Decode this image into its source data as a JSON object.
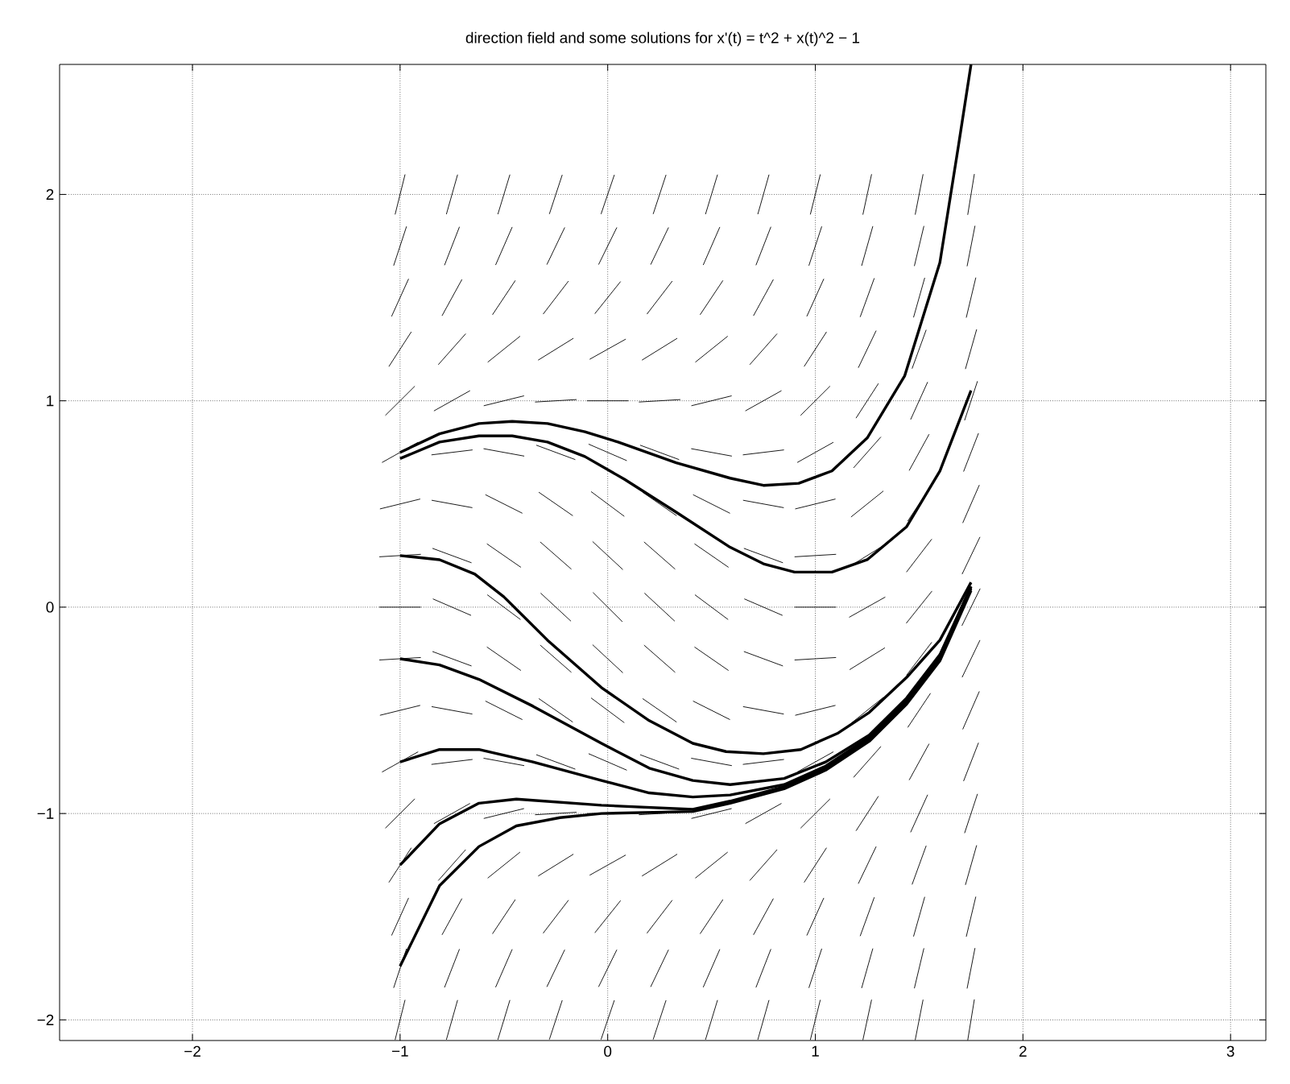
{
  "chart_data": {
    "type": "line",
    "title": "direction field and some solutions for  x'(t) = t^2 + x(t)^2 − 1",
    "xlim": [
      -2.64,
      3.17
    ],
    "ylim": [
      -2.1,
      2.63
    ],
    "xticks": [
      {
        "value": -2,
        "label": "−2"
      },
      {
        "value": -1,
        "label": "−1"
      },
      0,
      1,
      2,
      3
    ],
    "yticks": [
      {
        "value": -2,
        "label": "−2"
      },
      {
        "value": -1,
        "label": "−1"
      },
      0,
      1,
      2
    ],
    "grid": true,
    "series": [
      {
        "color": "#000000",
        "x": [
          -1.024,
          -0.976
        ],
        "values": [
          -2.097,
          -1.903
        ]
      },
      {
        "color": "#000000",
        "x": [
          -1.031,
          -0.969
        ],
        "values": [
          -1.845,
          -1.655
        ]
      },
      {
        "color": "#000000",
        "x": [
          -1.041,
          -0.959
        ],
        "values": [
          -1.591,
          -1.409
        ]
      },
      {
        "color": "#000000",
        "x": [
          -1.054,
          -0.946
        ],
        "values": [
          -1.334,
          -1.166
        ]
      },
      {
        "color": "#000000",
        "x": [
          -1.071,
          -0.929
        ],
        "values": [
          -1.071,
          -0.929
        ]
      },
      {
        "color": "#000000",
        "x": [
          -1.087,
          -0.913
        ],
        "values": [
          -0.799,
          -0.701
        ]
      },
      {
        "color": "#000000",
        "x": [
          -1.097,
          -0.903
        ],
        "values": [
          -0.524,
          -0.476
        ]
      },
      {
        "color": "#000000",
        "x": [
          -1.1,
          -0.9
        ],
        "values": [
          -0.256,
          -0.244
        ]
      },
      {
        "color": "#000000",
        "x": [
          -1.1,
          -0.9
        ],
        "values": [
          0,
          0
        ]
      },
      {
        "color": "#000000",
        "x": [
          -1.1,
          -0.9
        ],
        "values": [
          0.244,
          0.256
        ]
      },
      {
        "color": "#000000",
        "x": [
          -1.097,
          -0.903
        ],
        "values": [
          0.476,
          0.524
        ]
      },
      {
        "color": "#000000",
        "x": [
          -1.087,
          -0.913
        ],
        "values": [
          0.701,
          0.799
        ]
      },
      {
        "color": "#000000",
        "x": [
          -1.071,
          -0.929
        ],
        "values": [
          0.929,
          1.071
        ]
      },
      {
        "color": "#000000",
        "x": [
          -1.054,
          -0.946
        ],
        "values": [
          1.166,
          1.334
        ]
      },
      {
        "color": "#000000",
        "x": [
          -1.041,
          -0.959
        ],
        "values": [
          1.409,
          1.591
        ]
      },
      {
        "color": "#000000",
        "x": [
          -1.031,
          -0.969
        ],
        "values": [
          1.655,
          1.845
        ]
      },
      {
        "color": "#000000",
        "x": [
          -1.024,
          -0.976
        ],
        "values": [
          1.903,
          2.097
        ]
      },
      {
        "color": "#000000",
        "x": [
          -0.777,
          -0.723
        ],
        "values": [
          -2.096,
          -1.904
        ]
      },
      {
        "color": "#000000",
        "x": [
          -0.786,
          -0.714
        ],
        "values": [
          -1.843,
          -1.657
        ]
      },
      {
        "color": "#000000",
        "x": [
          -0.798,
          -0.702
        ],
        "values": [
          -1.588,
          -1.412
        ]
      },
      {
        "color": "#000000",
        "x": [
          -0.816,
          -0.684
        ],
        "values": [
          -1.325,
          -1.175
        ]
      },
      {
        "color": "#000000",
        "x": [
          -0.837,
          -0.663
        ],
        "values": [
          -1.049,
          -0.951
        ]
      },
      {
        "color": "#000000",
        "x": [
          -0.849,
          -0.651
        ],
        "values": [
          -0.762,
          -0.738
        ]
      },
      {
        "color": "#000000",
        "x": [
          -0.848,
          -0.652
        ],
        "values": [
          -0.482,
          -0.518
        ]
      },
      {
        "color": "#000000",
        "x": [
          -0.844,
          -0.656
        ],
        "values": [
          -0.215,
          -0.285
        ]
      },
      {
        "color": "#000000",
        "x": [
          -0.842,
          -0.658
        ],
        "values": [
          0.04,
          -0.04
        ]
      },
      {
        "color": "#000000",
        "x": [
          -0.844,
          -0.656
        ],
        "values": [
          0.285,
          0.215
        ]
      },
      {
        "color": "#000000",
        "x": [
          -0.848,
          -0.652
        ],
        "values": [
          0.518,
          0.482
        ]
      },
      {
        "color": "#000000",
        "x": [
          -0.849,
          -0.651
        ],
        "values": [
          0.738,
          0.762
        ]
      },
      {
        "color": "#000000",
        "x": [
          -0.837,
          -0.663
        ],
        "values": [
          0.951,
          1.049
        ]
      },
      {
        "color": "#000000",
        "x": [
          -0.816,
          -0.684
        ],
        "values": [
          1.175,
          1.325
        ]
      },
      {
        "color": "#000000",
        "x": [
          -0.798,
          -0.702
        ],
        "values": [
          1.412,
          1.588
        ]
      },
      {
        "color": "#000000",
        "x": [
          -0.786,
          -0.714
        ],
        "values": [
          1.657,
          1.843
        ]
      },
      {
        "color": "#000000",
        "x": [
          -0.777,
          -0.723
        ],
        "values": [
          1.904,
          2.096
        ]
      },
      {
        "color": "#000000",
        "x": [
          -0.529,
          -0.471
        ],
        "values": [
          -2.096,
          -1.904
        ]
      },
      {
        "color": "#000000",
        "x": [
          -0.54,
          -0.46
        ],
        "values": [
          -1.842,
          -1.658
        ]
      },
      {
        "color": "#000000",
        "x": [
          -0.555,
          -0.445
        ],
        "values": [
          -1.583,
          -1.417
        ]
      },
      {
        "color": "#000000",
        "x": [
          -0.578,
          -0.422
        ],
        "values": [
          -1.313,
          -1.187
        ]
      },
      {
        "color": "#000000",
        "x": [
          -0.597,
          -0.403
        ],
        "values": [
          -1.024,
          -0.976
        ]
      },
      {
        "color": "#000000",
        "x": [
          -0.598,
          -0.402
        ],
        "values": [
          -0.732,
          -0.768
        ]
      },
      {
        "color": "#000000",
        "x": [
          -0.589,
          -0.411
        ],
        "values": [
          -0.455,
          -0.545
        ]
      },
      {
        "color": "#000000",
        "x": [
          -0.582,
          -0.418
        ],
        "values": [
          -0.193,
          -0.307
        ]
      },
      {
        "color": "#000000",
        "x": [
          -0.58,
          -0.42
        ],
        "values": [
          0.06,
          -0.06
        ]
      },
      {
        "color": "#000000",
        "x": [
          -0.582,
          -0.418
        ],
        "values": [
          0.307,
          0.193
        ]
      },
      {
        "color": "#000000",
        "x": [
          -0.589,
          -0.411
        ],
        "values": [
          0.545,
          0.455
        ]
      },
      {
        "color": "#000000",
        "x": [
          -0.598,
          -0.402
        ],
        "values": [
          0.768,
          0.732
        ]
      },
      {
        "color": "#000000",
        "x": [
          -0.597,
          -0.403
        ],
        "values": [
          0.976,
          1.024
        ]
      },
      {
        "color": "#000000",
        "x": [
          -0.578,
          -0.422
        ],
        "values": [
          1.187,
          1.313
        ]
      },
      {
        "color": "#000000",
        "x": [
          -0.555,
          -0.445
        ],
        "values": [
          1.417,
          1.583
        ]
      },
      {
        "color": "#000000",
        "x": [
          -0.54,
          -0.46
        ],
        "values": [
          1.658,
          1.842
        ]
      },
      {
        "color": "#000000",
        "x": [
          -0.529,
          -0.471
        ],
        "values": [
          1.904,
          2.096
        ]
      },
      {
        "color": "#000000",
        "x": [
          -0.281,
          -0.219
        ],
        "values": [
          -2.095,
          -1.905
        ]
      },
      {
        "color": "#000000",
        "x": [
          -0.293,
          -0.207
        ],
        "values": [
          -1.84,
          -1.66
        ]
      },
      {
        "color": "#000000",
        "x": [
          -0.311,
          -0.189
        ],
        "values": [
          -1.58,
          -1.42
        ]
      },
      {
        "color": "#000000",
        "x": [
          -0.335,
          -0.165
        ],
        "values": [
          -1.303,
          -1.197
        ]
      },
      {
        "color": "#000000",
        "x": [
          -0.35,
          -0.15
        ],
        "values": [
          -1.006,
          -0.994
        ]
      },
      {
        "color": "#000000",
        "x": [
          -0.344,
          -0.156
        ],
        "values": [
          -0.715,
          -0.785
        ]
      },
      {
        "color": "#000000",
        "x": [
          -0.332,
          -0.168
        ],
        "values": [
          -0.443,
          -0.557
        ]
      },
      {
        "color": "#000000",
        "x": [
          -0.325,
          -0.175
        ],
        "values": [
          -0.184,
          -0.316
        ]
      },
      {
        "color": "#000000",
        "x": [
          -0.323,
          -0.177
        ],
        "values": [
          0.068,
          -0.068
        ]
      },
      {
        "color": "#000000",
        "x": [
          -0.325,
          -0.175
        ],
        "values": [
          0.316,
          0.184
        ]
      },
      {
        "color": "#000000",
        "x": [
          -0.332,
          -0.168
        ],
        "values": [
          0.557,
          0.443
        ]
      },
      {
        "color": "#000000",
        "x": [
          -0.344,
          -0.156
        ],
        "values": [
          0.785,
          0.715
        ]
      },
      {
        "color": "#000000",
        "x": [
          -0.35,
          -0.15
        ],
        "values": [
          0.994,
          1.006
        ]
      },
      {
        "color": "#000000",
        "x": [
          -0.335,
          -0.165
        ],
        "values": [
          1.197,
          1.303
        ]
      },
      {
        "color": "#000000",
        "x": [
          -0.311,
          -0.189
        ],
        "values": [
          1.42,
          1.58
        ]
      },
      {
        "color": "#000000",
        "x": [
          -0.293,
          -0.207
        ],
        "values": [
          1.66,
          1.84
        ]
      },
      {
        "color": "#000000",
        "x": [
          -0.281,
          -0.219
        ],
        "values": [
          1.905,
          2.095
        ]
      },
      {
        "color": "#000000",
        "x": [
          -0.032,
          0.032
        ],
        "values": [
          -2.095,
          -1.905
        ]
      },
      {
        "color": "#000000",
        "x": [
          -0.044,
          0.044
        ],
        "values": [
          -1.84,
          -1.66
        ]
      },
      {
        "color": "#000000",
        "x": [
          -0.062,
          0.062
        ],
        "values": [
          -1.578,
          -1.422
        ]
      },
      {
        "color": "#000000",
        "x": [
          -0.087,
          0.087
        ],
        "values": [
          -1.299,
          -1.201
        ]
      },
      {
        "color": "#000000",
        "x": [
          -0.1,
          0.1
        ],
        "values": [
          -1,
          -1
        ]
      },
      {
        "color": "#000000",
        "x": [
          -0.092,
          0.092
        ],
        "values": [
          -0.71,
          -0.79
        ]
      },
      {
        "color": "#000000",
        "x": [
          -0.08,
          0.08
        ],
        "values": [
          -0.44,
          -0.56
        ]
      },
      {
        "color": "#000000",
        "x": [
          -0.073,
          0.073
        ],
        "values": [
          -0.182,
          -0.318
        ]
      },
      {
        "color": "#000000",
        "x": [
          -0.071,
          0.071
        ],
        "values": [
          0.071,
          -0.071
        ]
      },
      {
        "color": "#000000",
        "x": [
          -0.073,
          0.073
        ],
        "values": [
          0.318,
          0.182
        ]
      },
      {
        "color": "#000000",
        "x": [
          -0.08,
          0.08
        ],
        "values": [
          0.56,
          0.44
        ]
      },
      {
        "color": "#000000",
        "x": [
          -0.092,
          0.092
        ],
        "values": [
          0.79,
          0.71
        ]
      },
      {
        "color": "#000000",
        "x": [
          -0.1,
          0.1
        ],
        "values": [
          1,
          1
        ]
      },
      {
        "color": "#000000",
        "x": [
          -0.087,
          0.087
        ],
        "values": [
          1.201,
          1.299
        ]
      },
      {
        "color": "#000000",
        "x": [
          -0.062,
          0.062
        ],
        "values": [
          1.422,
          1.578
        ]
      },
      {
        "color": "#000000",
        "x": [
          -0.044,
          0.044
        ],
        "values": [
          1.66,
          1.84
        ]
      },
      {
        "color": "#000000",
        "x": [
          -0.032,
          0.032
        ],
        "values": [
          1.905,
          2.095
        ]
      },
      {
        "color": "#000000",
        "x": [
          0.219,
          0.281
        ],
        "values": [
          -2.095,
          -1.905
        ]
      },
      {
        "color": "#000000",
        "x": [
          0.207,
          0.293
        ],
        "values": [
          -1.84,
          -1.66
        ]
      },
      {
        "color": "#000000",
        "x": [
          0.189,
          0.311
        ],
        "values": [
          -1.58,
          -1.42
        ]
      },
      {
        "color": "#000000",
        "x": [
          0.165,
          0.335
        ],
        "values": [
          -1.303,
          -1.197
        ]
      },
      {
        "color": "#000000",
        "x": [
          0.15,
          0.35
        ],
        "values": [
          -1.006,
          -0.994
        ]
      },
      {
        "color": "#000000",
        "x": [
          0.156,
          0.344
        ],
        "values": [
          -0.715,
          -0.785
        ]
      },
      {
        "color": "#000000",
        "x": [
          0.168,
          0.332
        ],
        "values": [
          -0.443,
          -0.557
        ]
      },
      {
        "color": "#000000",
        "x": [
          0.175,
          0.325
        ],
        "values": [
          -0.184,
          -0.316
        ]
      },
      {
        "color": "#000000",
        "x": [
          0.177,
          0.323
        ],
        "values": [
          0.068,
          -0.068
        ]
      },
      {
        "color": "#000000",
        "x": [
          0.175,
          0.325
        ],
        "values": [
          0.316,
          0.184
        ]
      },
      {
        "color": "#000000",
        "x": [
          0.168,
          0.332
        ],
        "values": [
          0.557,
          0.443
        ]
      },
      {
        "color": "#000000",
        "x": [
          0.156,
          0.344
        ],
        "values": [
          0.785,
          0.715
        ]
      },
      {
        "color": "#000000",
        "x": [
          0.15,
          0.35
        ],
        "values": [
          0.994,
          1.006
        ]
      },
      {
        "color": "#000000",
        "x": [
          0.165,
          0.335
        ],
        "values": [
          1.197,
          1.303
        ]
      },
      {
        "color": "#000000",
        "x": [
          0.189,
          0.311
        ],
        "values": [
          1.42,
          1.58
        ]
      },
      {
        "color": "#000000",
        "x": [
          0.207,
          0.293
        ],
        "values": [
          1.66,
          1.84
        ]
      },
      {
        "color": "#000000",
        "x": [
          0.219,
          0.281
        ],
        "values": [
          1.905,
          2.095
        ]
      },
      {
        "color": "#000000",
        "x": [
          0.471,
          0.529
        ],
        "values": [
          -2.096,
          -1.904
        ]
      },
      {
        "color": "#000000",
        "x": [
          0.46,
          0.54
        ],
        "values": [
          -1.842,
          -1.658
        ]
      },
      {
        "color": "#000000",
        "x": [
          0.445,
          0.555
        ],
        "values": [
          -1.583,
          -1.417
        ]
      },
      {
        "color": "#000000",
        "x": [
          0.422,
          0.578
        ],
        "values": [
          -1.313,
          -1.187
        ]
      },
      {
        "color": "#000000",
        "x": [
          0.403,
          0.597
        ],
        "values": [
          -1.024,
          -0.976
        ]
      },
      {
        "color": "#000000",
        "x": [
          0.402,
          0.598
        ],
        "values": [
          -0.732,
          -0.768
        ]
      },
      {
        "color": "#000000",
        "x": [
          0.411,
          0.589
        ],
        "values": [
          -0.455,
          -0.545
        ]
      },
      {
        "color": "#000000",
        "x": [
          0.418,
          0.582
        ],
        "values": [
          -0.193,
          -0.307
        ]
      },
      {
        "color": "#000000",
        "x": [
          0.42,
          0.58
        ],
        "values": [
          0.06,
          -0.06
        ]
      },
      {
        "color": "#000000",
        "x": [
          0.418,
          0.582
        ],
        "values": [
          0.307,
          0.193
        ]
      },
      {
        "color": "#000000",
        "x": [
          0.411,
          0.589
        ],
        "values": [
          0.545,
          0.455
        ]
      },
      {
        "color": "#000000",
        "x": [
          0.402,
          0.598
        ],
        "values": [
          0.768,
          0.732
        ]
      },
      {
        "color": "#000000",
        "x": [
          0.403,
          0.597
        ],
        "values": [
          0.976,
          1.024
        ]
      },
      {
        "color": "#000000",
        "x": [
          0.422,
          0.578
        ],
        "values": [
          1.187,
          1.313
        ]
      },
      {
        "color": "#000000",
        "x": [
          0.445,
          0.555
        ],
        "values": [
          1.417,
          1.583
        ]
      },
      {
        "color": "#000000",
        "x": [
          0.46,
          0.54
        ],
        "values": [
          1.658,
          1.842
        ]
      },
      {
        "color": "#000000",
        "x": [
          0.471,
          0.529
        ],
        "values": [
          1.904,
          2.096
        ]
      },
      {
        "color": "#000000",
        "x": [
          0.723,
          0.777
        ],
        "values": [
          -2.096,
          -1.904
        ]
      },
      {
        "color": "#000000",
        "x": [
          0.714,
          0.786
        ],
        "values": [
          -1.843,
          -1.657
        ]
      },
      {
        "color": "#000000",
        "x": [
          0.702,
          0.798
        ],
        "values": [
          -1.588,
          -1.412
        ]
      },
      {
        "color": "#000000",
        "x": [
          0.684,
          0.816
        ],
        "values": [
          -1.325,
          -1.175
        ]
      },
      {
        "color": "#000000",
        "x": [
          0.663,
          0.837
        ],
        "values": [
          -1.049,
          -0.951
        ]
      },
      {
        "color": "#000000",
        "x": [
          0.651,
          0.849
        ],
        "values": [
          -0.762,
          -0.738
        ]
      },
      {
        "color": "#000000",
        "x": [
          0.652,
          0.848
        ],
        "values": [
          -0.482,
          -0.518
        ]
      },
      {
        "color": "#000000",
        "x": [
          0.656,
          0.844
        ],
        "values": [
          -0.215,
          -0.285
        ]
      },
      {
        "color": "#000000",
        "x": [
          0.658,
          0.842
        ],
        "values": [
          0.04,
          -0.04
        ]
      },
      {
        "color": "#000000",
        "x": [
          0.656,
          0.844
        ],
        "values": [
          0.285,
          0.215
        ]
      },
      {
        "color": "#000000",
        "x": [
          0.652,
          0.848
        ],
        "values": [
          0.518,
          0.482
        ]
      },
      {
        "color": "#000000",
        "x": [
          0.651,
          0.849
        ],
        "values": [
          0.738,
          0.762
        ]
      },
      {
        "color": "#000000",
        "x": [
          0.663,
          0.837
        ],
        "values": [
          0.951,
          1.049
        ]
      },
      {
        "color": "#000000",
        "x": [
          0.684,
          0.816
        ],
        "values": [
          1.175,
          1.325
        ]
      },
      {
        "color": "#000000",
        "x": [
          0.702,
          0.798
        ],
        "values": [
          1.412,
          1.588
        ]
      },
      {
        "color": "#000000",
        "x": [
          0.714,
          0.786
        ],
        "values": [
          1.657,
          1.843
        ]
      },
      {
        "color": "#000000",
        "x": [
          0.723,
          0.777
        ],
        "values": [
          1.904,
          2.096
        ]
      },
      {
        "color": "#000000",
        "x": [
          0.976,
          1.024
        ],
        "values": [
          -2.097,
          -1.903
        ]
      },
      {
        "color": "#000000",
        "x": [
          0.969,
          1.031
        ],
        "values": [
          -1.845,
          -1.655
        ]
      },
      {
        "color": "#000000",
        "x": [
          0.959,
          1.041
        ],
        "values": [
          -1.591,
          -1.409
        ]
      },
      {
        "color": "#000000",
        "x": [
          0.946,
          1.054
        ],
        "values": [
          -1.334,
          -1.166
        ]
      },
      {
        "color": "#000000",
        "x": [
          0.929,
          1.071
        ],
        "values": [
          -1.071,
          -0.929
        ]
      },
      {
        "color": "#000000",
        "x": [
          0.913,
          1.087
        ],
        "values": [
          -0.799,
          -0.701
        ]
      },
      {
        "color": "#000000",
        "x": [
          0.903,
          1.097
        ],
        "values": [
          -0.524,
          -0.476
        ]
      },
      {
        "color": "#000000",
        "x": [
          0.9,
          1.1
        ],
        "values": [
          -0.256,
          -0.244
        ]
      },
      {
        "color": "#000000",
        "x": [
          0.9,
          1.1
        ],
        "values": [
          0,
          0
        ]
      },
      {
        "color": "#000000",
        "x": [
          0.9,
          1.1
        ],
        "values": [
          0.244,
          0.256
        ]
      },
      {
        "color": "#000000",
        "x": [
          0.903,
          1.097
        ],
        "values": [
          0.476,
          0.524
        ]
      },
      {
        "color": "#000000",
        "x": [
          0.913,
          1.087
        ],
        "values": [
          0.701,
          0.799
        ]
      },
      {
        "color": "#000000",
        "x": [
          0.929,
          1.071
        ],
        "values": [
          0.929,
          1.071
        ]
      },
      {
        "color": "#000000",
        "x": [
          0.946,
          1.054
        ],
        "values": [
          1.166,
          1.334
        ]
      },
      {
        "color": "#000000",
        "x": [
          0.959,
          1.041
        ],
        "values": [
          1.409,
          1.591
        ]
      },
      {
        "color": "#000000",
        "x": [
          0.969,
          1.031
        ],
        "values": [
          1.655,
          1.845
        ]
      },
      {
        "color": "#000000",
        "x": [
          0.976,
          1.024
        ],
        "values": [
          1.903,
          2.097
        ]
      },
      {
        "color": "#000000",
        "x": [
          1.229,
          1.271
        ],
        "values": [
          -2.098,
          -1.902
        ]
      },
      {
        "color": "#000000",
        "x": [
          1.223,
          1.277
        ],
        "values": [
          -1.846,
          -1.654
        ]
      },
      {
        "color": "#000000",
        "x": [
          1.216,
          1.284
        ],
        "values": [
          -1.594,
          -1.406
        ]
      },
      {
        "color": "#000000",
        "x": [
          1.207,
          1.293
        ],
        "values": [
          -1.34,
          -1.16
        ]
      },
      {
        "color": "#000000",
        "x": [
          1.196,
          1.304
        ],
        "values": [
          -1.084,
          -0.916
        ]
      },
      {
        "color": "#000000",
        "x": [
          1.184,
          1.316
        ],
        "values": [
          -0.825,
          -0.675
        ]
      },
      {
        "color": "#000000",
        "x": [
          1.172,
          1.328
        ],
        "values": [
          -0.563,
          -0.437
        ]
      },
      {
        "color": "#000000",
        "x": [
          1.165,
          1.335
        ],
        "values": [
          -0.303,
          -0.197
        ]
      },
      {
        "color": "#000000",
        "x": [
          1.163,
          1.337
        ],
        "values": [
          -0.049,
          0.049
        ]
      },
      {
        "color": "#000000",
        "x": [
          1.165,
          1.335
        ],
        "values": [
          0.197,
          0.303
        ]
      },
      {
        "color": "#000000",
        "x": [
          1.172,
          1.328
        ],
        "values": [
          0.437,
          0.563
        ]
      },
      {
        "color": "#000000",
        "x": [
          1.184,
          1.316
        ],
        "values": [
          0.675,
          0.825
        ]
      },
      {
        "color": "#000000",
        "x": [
          1.196,
          1.304
        ],
        "values": [
          0.916,
          1.084
        ]
      },
      {
        "color": "#000000",
        "x": [
          1.207,
          1.293
        ],
        "values": [
          1.16,
          1.34
        ]
      },
      {
        "color": "#000000",
        "x": [
          1.216,
          1.284
        ],
        "values": [
          1.406,
          1.594
        ]
      },
      {
        "color": "#000000",
        "x": [
          1.223,
          1.277
        ],
        "values": [
          1.654,
          1.846
        ]
      },
      {
        "color": "#000000",
        "x": [
          1.229,
          1.271
        ],
        "values": [
          1.902,
          2.098
        ]
      },
      {
        "color": "#000000",
        "x": [
          1.481,
          1.519
        ],
        "values": [
          -2.098,
          -1.902
        ]
      },
      {
        "color": "#000000",
        "x": [
          1.477,
          1.523
        ],
        "values": [
          -1.847,
          -1.653
        ]
      },
      {
        "color": "#000000",
        "x": [
          1.473,
          1.527
        ],
        "values": [
          -1.596,
          -1.404
        ]
      },
      {
        "color": "#000000",
        "x": [
          1.466,
          1.534
        ],
        "values": [
          -1.344,
          -1.156
        ]
      },
      {
        "color": "#000000",
        "x": [
          1.459,
          1.541
        ],
        "values": [
          -1.091,
          -0.909
        ]
      },
      {
        "color": "#000000",
        "x": [
          1.452,
          1.548
        ],
        "values": [
          -0.838,
          -0.662
        ]
      },
      {
        "color": "#000000",
        "x": [
          1.445,
          1.555
        ],
        "values": [
          -0.583,
          -0.417
        ]
      },
      {
        "color": "#000000",
        "x": [
          1.439,
          1.561
        ],
        "values": [
          -0.33,
          -0.17
        ]
      },
      {
        "color": "#000000",
        "x": [
          1.438,
          1.562
        ],
        "values": [
          -0.078,
          0.078
        ]
      },
      {
        "color": "#000000",
        "x": [
          1.439,
          1.561
        ],
        "values": [
          0.17,
          0.33
        ]
      },
      {
        "color": "#000000",
        "x": [
          1.445,
          1.555
        ],
        "values": [
          0.417,
          0.583
        ]
      },
      {
        "color": "#000000",
        "x": [
          1.452,
          1.548
        ],
        "values": [
          0.662,
          0.838
        ]
      },
      {
        "color": "#000000",
        "x": [
          1.459,
          1.541
        ],
        "values": [
          0.909,
          1.091
        ]
      },
      {
        "color": "#000000",
        "x": [
          1.466,
          1.534
        ],
        "values": [
          1.156,
          1.344
        ]
      },
      {
        "color": "#000000",
        "x": [
          1.473,
          1.527
        ],
        "values": [
          1.404,
          1.596
        ]
      },
      {
        "color": "#000000",
        "x": [
          1.477,
          1.523
        ],
        "values": [
          1.653,
          1.847
        ]
      },
      {
        "color": "#000000",
        "x": [
          1.481,
          1.519
        ],
        "values": [
          1.902,
          2.098
        ]
      },
      {
        "color": "#000000",
        "x": [
          1.734,
          1.766
        ],
        "values": [
          -2.099,
          -1.901
        ]
      },
      {
        "color": "#000000",
        "x": [
          1.731,
          1.769
        ],
        "values": [
          -1.848,
          -1.652
        ]
      },
      {
        "color": "#000000",
        "x": [
          1.727,
          1.773
        ],
        "values": [
          -1.597,
          -1.403
        ]
      },
      {
        "color": "#000000",
        "x": [
          1.723,
          1.777
        ],
        "values": [
          -1.346,
          -1.154
        ]
      },
      {
        "color": "#000000",
        "x": [
          1.719,
          1.781
        ],
        "values": [
          -1.095,
          -0.905
        ]
      },
      {
        "color": "#000000",
        "x": [
          1.714,
          1.786
        ],
        "values": [
          -0.843,
          -0.657
        ]
      },
      {
        "color": "#000000",
        "x": [
          1.71,
          1.79
        ],
        "values": [
          -0.592,
          -0.408
        ]
      },
      {
        "color": "#000000",
        "x": [
          1.707,
          1.793
        ],
        "values": [
          -0.34,
          -0.16
        ]
      },
      {
        "color": "#000000",
        "x": [
          1.706,
          1.794
        ],
        "values": [
          -0.09,
          0.09
        ]
      },
      {
        "color": "#000000",
        "x": [
          1.707,
          1.793
        ],
        "values": [
          0.16,
          0.34
        ]
      },
      {
        "color": "#000000",
        "x": [
          1.71,
          1.79
        ],
        "values": [
          0.408,
          0.592
        ]
      },
      {
        "color": "#000000",
        "x": [
          1.714,
          1.786
        ],
        "values": [
          0.657,
          0.843
        ]
      },
      {
        "color": "#000000",
        "x": [
          1.719,
          1.781
        ],
        "values": [
          0.905,
          1.095
        ]
      },
      {
        "color": "#000000",
        "x": [
          1.723,
          1.777
        ],
        "values": [
          1.154,
          1.346
        ]
      },
      {
        "color": "#000000",
        "x": [
          1.727,
          1.773
        ],
        "values": [
          1.403,
          1.597
        ]
      },
      {
        "color": "#000000",
        "x": [
          1.731,
          1.769
        ],
        "values": [
          1.652,
          1.848
        ]
      },
      {
        "color": "#000000",
        "x": [
          1.734,
          1.766
        ],
        "values": [
          1.901,
          2.099
        ]
      },
      {
        "color": "#000000",
        "x": [
          -1,
          -0.81,
          -0.62,
          -0.46,
          -0.29,
          -0.11,
          0.05,
          0.33,
          0.59,
          0.75,
          0.92,
          1.08,
          1.25,
          1.43,
          1.6,
          1.69,
          1.75
        ],
        "values": [
          0.75,
          0.84,
          0.89,
          0.9,
          0.89,
          0.85,
          0.8,
          0.7,
          0.625,
          0.59,
          0.6,
          0.66,
          0.82,
          1.12,
          1.67,
          2.24,
          2.63
        ]
      },
      {
        "color": "#000000",
        "x": [
          -1,
          -0.81,
          -0.62,
          -0.46,
          -0.29,
          -0.11,
          0.08,
          0.33,
          0.59,
          0.75,
          0.9,
          1.08,
          1.25,
          1.44,
          1.6,
          1.75
        ],
        "values": [
          0.72,
          0.8,
          0.83,
          0.83,
          0.8,
          0.73,
          0.62,
          0.46,
          0.29,
          0.21,
          0.17,
          0.17,
          0.23,
          0.39,
          0.66,
          1.05
        ]
      },
      {
        "color": "#000000",
        "x": [
          -1,
          -0.81,
          -0.64,
          -0.5,
          -0.29,
          -0.03,
          0.2,
          0.41,
          0.57,
          0.75,
          0.93,
          1.11,
          1.26,
          1.44,
          1.6,
          1.75
        ],
        "values": [
          0.25,
          0.23,
          0.16,
          0.05,
          -0.16,
          -0.39,
          -0.55,
          -0.66,
          -0.7,
          -0.71,
          -0.69,
          -0.61,
          -0.51,
          -0.34,
          -0.16,
          0.12
        ]
      },
      {
        "color": "#000000",
        "x": [
          -1,
          -0.81,
          -0.62,
          -0.36,
          -0.03,
          0.2,
          0.41,
          0.59,
          0.85,
          1.05,
          1.26,
          1.44,
          1.6,
          1.75
        ],
        "values": [
          -0.25,
          -0.28,
          -0.35,
          -0.48,
          -0.66,
          -0.78,
          -0.84,
          -0.86,
          -0.83,
          -0.75,
          -0.62,
          -0.44,
          -0.23,
          0.1
        ]
      },
      {
        "color": "#000000",
        "x": [
          -1,
          -0.81,
          -0.62,
          -0.36,
          -0.03,
          0.2,
          0.41,
          0.59,
          0.85,
          1.05,
          1.26,
          1.44,
          1.6,
          1.75
        ],
        "values": [
          -0.75,
          -0.69,
          -0.69,
          -0.75,
          -0.84,
          -0.9,
          -0.92,
          -0.91,
          -0.86,
          -0.77,
          -0.63,
          -0.45,
          -0.24,
          0.1
        ]
      },
      {
        "color": "#000000",
        "x": [
          -1,
          -0.81,
          -0.62,
          -0.44,
          -0.03,
          0.41,
          0.59,
          0.85,
          1.05,
          1.26,
          1.44,
          1.6,
          1.75
        ],
        "values": [
          -1.25,
          -1.05,
          -0.95,
          -0.93,
          -0.96,
          -0.98,
          -0.94,
          -0.87,
          -0.78,
          -0.64,
          -0.46,
          -0.25,
          0.09
        ]
      },
      {
        "color": "#000000",
        "x": [
          -1,
          -0.81,
          -0.62,
          -0.44,
          -0.23,
          -0.03,
          0.41,
          0.59,
          0.85,
          1.05,
          1.26,
          1.44,
          1.6,
          1.75
        ],
        "values": [
          -1.74,
          -1.35,
          -1.16,
          -1.06,
          -1.02,
          -1.0,
          -0.99,
          -0.95,
          -0.88,
          -0.79,
          -0.65,
          -0.47,
          -0.26,
          0.08
        ]
      }
    ]
  }
}
